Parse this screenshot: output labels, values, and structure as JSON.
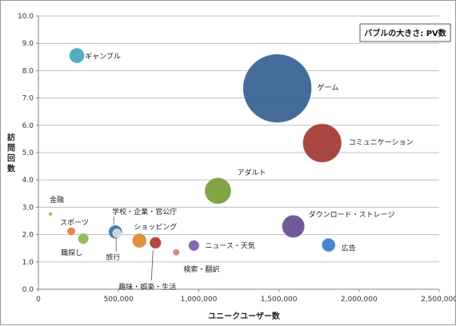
{
  "chart_data": {
    "type": "scatter",
    "subtype": "bubble",
    "title": "",
    "xlabel": "ユニークユーザー数",
    "ylabel": "訪問回数",
    "xlim": [
      0,
      2500000
    ],
    "ylim": [
      0,
      10
    ],
    "xticks": [
      0,
      500000,
      1000000,
      1500000,
      2000000,
      2500000
    ],
    "xtick_labels": [
      "0",
      "500,000",
      "1,000,000",
      "1,500,000",
      "2,000,000",
      "2,500,000"
    ],
    "yticks": [
      0,
      1,
      2,
      3,
      4,
      5,
      6,
      7,
      8,
      9,
      10
    ],
    "ytick_labels": [
      "0.0",
      "1.0",
      "2.0",
      "3.0",
      "4.0",
      "5.0",
      "6.0",
      "7.0",
      "8.0",
      "9.0",
      "10.0"
    ],
    "grid": "horizontal",
    "legend_note": "バブルの大きさ: PV数",
    "legend_position": "top-right",
    "series": [
      {
        "name": "ギャンブル",
        "x": 240000,
        "y": 8.55,
        "size": 0.05,
        "color": "#4aa9b8"
      },
      {
        "name": "ゲーム",
        "x": 1490000,
        "y": 7.35,
        "size": 1.0,
        "color": "#3b6396"
      },
      {
        "name": "コミュニケーション",
        "x": 1770000,
        "y": 5.35,
        "size": 0.32,
        "color": "#a33c38"
      },
      {
        "name": "アダルト",
        "x": 1120000,
        "y": 3.6,
        "size": 0.15,
        "color": "#7aa03a"
      },
      {
        "name": "金融",
        "x": 75000,
        "y": 2.75,
        "size": 0.003,
        "color": "#9dbf58"
      },
      {
        "name": "学校・企業・官公庁",
        "x": 480000,
        "y": 2.1,
        "size": 0.04,
        "color": "#3d75a8"
      },
      {
        "name": "ダウンロード・ストレージ",
        "x": 1590000,
        "y": 2.3,
        "size": 0.11,
        "color": "#6c4f93"
      },
      {
        "name": "スポーツ",
        "x": 205000,
        "y": 2.12,
        "size": 0.015,
        "color": "#e9823b"
      },
      {
        "name": "ショッピング",
        "x": 630000,
        "y": 1.78,
        "size": 0.045,
        "color": "#e08a3a"
      },
      {
        "name": "職探し",
        "x": 280000,
        "y": 1.85,
        "size": 0.025,
        "color": "#8fb854"
      },
      {
        "name": "旅行",
        "x": 490000,
        "y": 2.05,
        "size": 0.015,
        "color": "#cfdbe8"
      },
      {
        "name": "趣味・娯楽・生活",
        "x": 730000,
        "y": 1.7,
        "size": 0.03,
        "color": "#b23f3b"
      },
      {
        "name": "ニュース・天気",
        "x": 970000,
        "y": 1.6,
        "size": 0.025,
        "color": "#7e5fa5"
      },
      {
        "name": "検索・翻訳",
        "x": 860000,
        "y": 1.35,
        "size": 0.01,
        "color": "#d97f7f"
      },
      {
        "name": "広告",
        "x": 1810000,
        "y": 1.62,
        "size": 0.04,
        "color": "#3e80c8"
      }
    ]
  }
}
